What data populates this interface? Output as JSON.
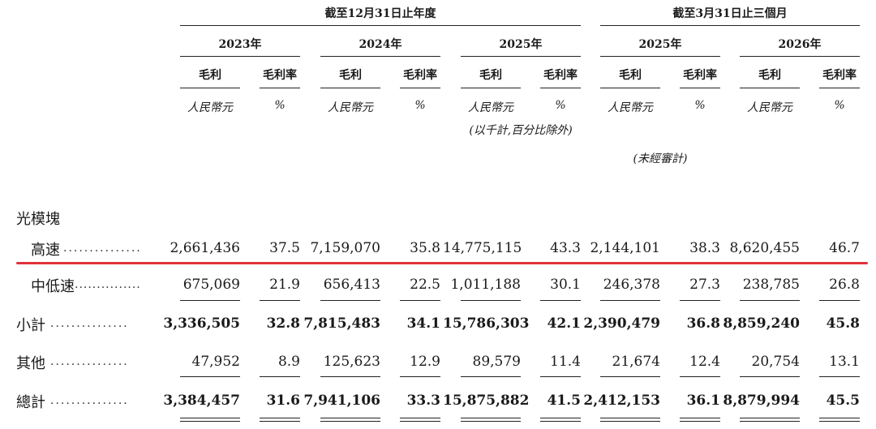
{
  "group_headers": {
    "year_end": "截至12月31日止年度",
    "three_months": "截至3月31日止三個月"
  },
  "year_headers": [
    "2023年",
    "2024年",
    "2025年",
    "2025年",
    "2026年"
  ],
  "sub_headers": {
    "gross_profit": "毛利",
    "gross_margin": "毛利率"
  },
  "units": {
    "rmb": "人民幣元",
    "pct": "%",
    "thousands_note": "(以千計,百分比除外)",
    "unaudited": "(未經審計)"
  },
  "section_label": "光模塊",
  "dots": "...............",
  "rows": [
    {
      "label": "高速",
      "values": [
        "2,661,436",
        "37.5",
        "7,159,070",
        "35.8",
        "14,775,115",
        "43.3",
        "2,144,101",
        "38.3",
        "8,620,455",
        "46.7"
      ]
    },
    {
      "label": "中低速",
      "values": [
        "675,069",
        "21.9",
        "656,413",
        "22.5",
        "1,011,188",
        "30.1",
        "246,378",
        "27.3",
        "238,785",
        "26.8"
      ]
    },
    {
      "label": "小計",
      "values": [
        "3,336,505",
        "32.8",
        "7,815,483",
        "34.1",
        "15,786,303",
        "42.1",
        "2,390,479",
        "36.8",
        "8,859,240",
        "45.8"
      ]
    },
    {
      "label": "其他",
      "values": [
        "47,952",
        "8.9",
        "125,623",
        "12.9",
        "89,579",
        "11.4",
        "21,674",
        "12.4",
        "20,754",
        "13.1"
      ]
    },
    {
      "label": "總計",
      "values": [
        "3,384,457",
        "31.6",
        "7,941,106",
        "33.3",
        "15,875,882",
        "41.5",
        "2,412,153",
        "36.1",
        "8,879,994",
        "45.5"
      ]
    }
  ],
  "colors": {
    "highlight_line": "#e0323a"
  }
}
